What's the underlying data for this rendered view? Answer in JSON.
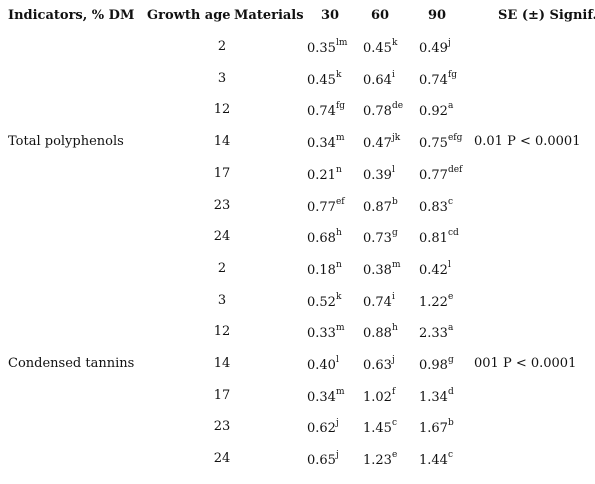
{
  "headers": {
    "indicators": "Indicators, % DM",
    "growth_age": "Growth age",
    "materials": "Materials",
    "d30": "30",
    "d60": "60",
    "d90": "90",
    "se": "SE (±) Signif."
  },
  "groups": [
    {
      "indicator": "Total polyphenols",
      "signif": "0.01  P < 0.0001",
      "rows": [
        {
          "material": "2",
          "v30": "0.35",
          "s30": "lm",
          "v60": "0.45",
          "s60": "k",
          "v90": "0.49",
          "s90": "j"
        },
        {
          "material": "3",
          "v30": "0.45",
          "s30": "k",
          "v60": "0.64",
          "s60": "i",
          "v90": "0.74",
          "s90": "fg"
        },
        {
          "material": "12",
          "v30": "0.74",
          "s30": "fg",
          "v60": "0.78",
          "s60": "de",
          "v90": "0.92",
          "s90": "a"
        },
        {
          "material": "14",
          "v30": "0.34",
          "s30": "m",
          "v60": "0.47",
          "s60": "jk",
          "v90": "0.75",
          "s90": "efg"
        },
        {
          "material": "17",
          "v30": "0.21",
          "s30": "n",
          "v60": "0.39",
          "s60": "l",
          "v90": "0.77",
          "s90": "def"
        },
        {
          "material": "23",
          "v30": "0.77",
          "s30": "ef",
          "v60": "0.87",
          "s60": "b",
          "v90": "0.83",
          "s90": "c"
        },
        {
          "material": "24",
          "v30": "0.68",
          "s30": "h",
          "v60": "0.73",
          "s60": "g",
          "v90": "0.81",
          "s90": "cd"
        }
      ]
    },
    {
      "indicator": "Condensed tannins",
      "signif": "001  P < 0.0001",
      "rows": [
        {
          "material": "2",
          "v30": "0.18",
          "s30": "n",
          "v60": "0.38",
          "s60": "m",
          "v90": "0.42",
          "s90": "l"
        },
        {
          "material": "3",
          "v30": "0.52",
          "s30": "k",
          "v60": "0.74",
          "s60": "i",
          "v90": "1.22",
          "s90": "e"
        },
        {
          "material": "12",
          "v30": "0.33",
          "s30": "m",
          "v60": "0.88",
          "s60": "h",
          "v90": "2.33",
          "s90": "a"
        },
        {
          "material": "14",
          "v30": "0.40",
          "s30": "l",
          "v60": "0.63",
          "s60": "j",
          "v90": "0.98",
          "s90": "g"
        },
        {
          "material": "17",
          "v30": "0.34",
          "s30": "m",
          "v60": "1.02",
          "s60": "f",
          "v90": "1.34",
          "s90": "d"
        },
        {
          "material": "23",
          "v30": "0.62",
          "s30": "j",
          "v60": "1.45",
          "s60": "c",
          "v90": "1.67",
          "s90": "b"
        },
        {
          "material": "24",
          "v30": "0.65",
          "s30": "j",
          "v60": "1.23",
          "s60": "e",
          "v90": "1.44",
          "s90": "c"
        }
      ]
    }
  ]
}
